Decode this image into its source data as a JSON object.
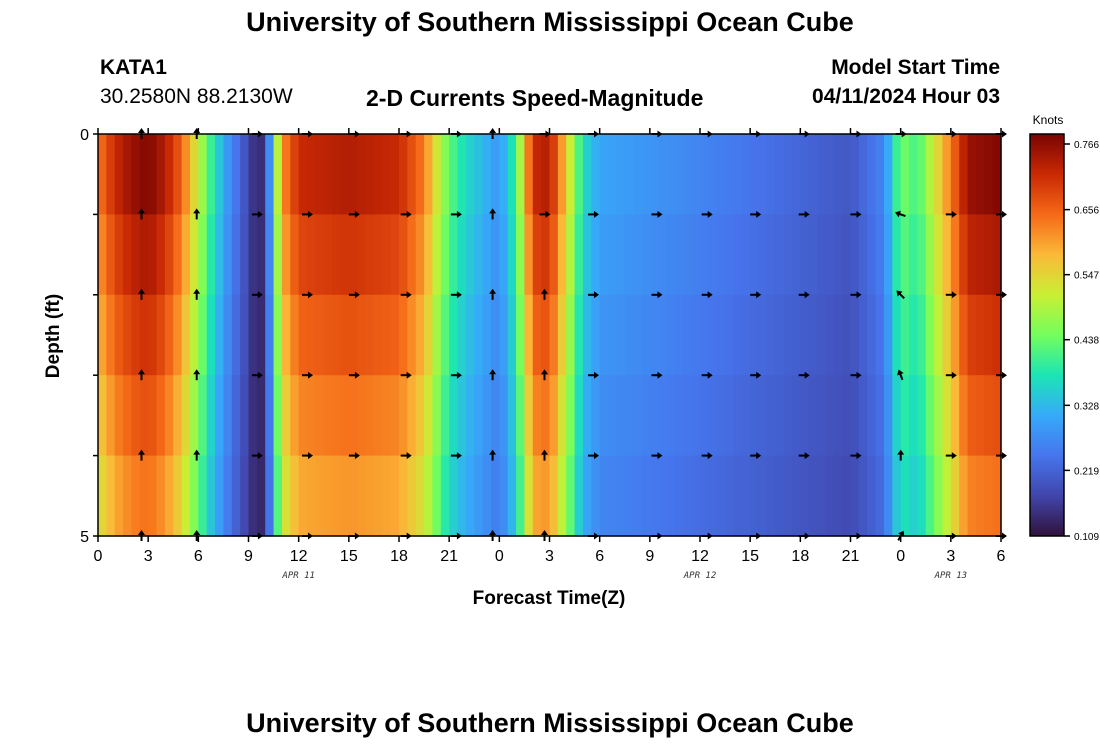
{
  "page": {
    "title": "University of Southern Mississippi Ocean Cube",
    "station": "KATA1",
    "coords": "30.2580N  88.2130W",
    "subtitle": "2-D Currents Speed-Magnitude",
    "model_label": "Model Start Time",
    "model_time": "04/11/2024 Hour 03",
    "bottom_title": "University of Southern Mississippi Ocean Cube"
  },
  "chart_data": {
    "type": "heatmap",
    "title": "2-D Currents Speed-Magnitude",
    "xlabel": "Forecast Time(Z)",
    "ylabel": "Depth (ft)",
    "x_ticks": [
      "0",
      "3",
      "6",
      "9",
      "12",
      "15",
      "18",
      "21",
      "0",
      "3",
      "6",
      "9",
      "12",
      "15",
      "18",
      "21",
      "0",
      "3",
      "6"
    ],
    "x_range_hours": [
      0,
      54
    ],
    "y_ticks": [
      "0",
      "5"
    ],
    "y_range_ft": [
      0,
      5
    ],
    "date_labels": [
      {
        "label": "APR 11",
        "hour": 12
      },
      {
        "label": "APR 12",
        "hour": 36
      },
      {
        "label": "APR 13",
        "hour": 51
      }
    ],
    "colorbar": {
      "unit": "Knots",
      "ticks": [
        "0.766",
        "0.656",
        "0.547",
        "0.438",
        "0.328",
        "0.219",
        "0.109"
      ],
      "range": [
        0.109,
        0.766
      ]
    },
    "depth_layers": 5,
    "speed_profile_hours": [
      0,
      1,
      2,
      3,
      4,
      5,
      6,
      7,
      8,
      9,
      9.5,
      10,
      11,
      12,
      15,
      18,
      19.5,
      20.5,
      21,
      22,
      24,
      25,
      26,
      27,
      28,
      29,
      30,
      33,
      36,
      39,
      42,
      45,
      47,
      48,
      49,
      51,
      52,
      54
    ],
    "speed_profile_knots": [
      0.62,
      0.7,
      0.74,
      0.76,
      0.72,
      0.64,
      0.5,
      0.36,
      0.26,
      0.18,
      0.13,
      0.16,
      0.6,
      0.7,
      0.72,
      0.7,
      0.62,
      0.48,
      0.42,
      0.36,
      0.28,
      0.4,
      0.7,
      0.72,
      0.55,
      0.36,
      0.3,
      0.28,
      0.26,
      0.24,
      0.22,
      0.2,
      0.26,
      0.44,
      0.4,
      0.62,
      0.74,
      0.76
    ],
    "arrow_rows_ft": [
      0,
      1,
      2,
      3,
      4,
      5
    ],
    "arrow_hours": [
      2.6,
      5.9,
      9.5,
      12.5,
      15.3,
      18.4,
      21.4,
      23.6,
      26.7,
      29.6,
      33.4,
      36.4,
      39.3,
      42.2,
      45.3,
      48.0,
      51.0,
      54.0
    ],
    "arrow_directions_deg": [
      [
        270,
        270,
        0,
        0,
        0,
        0,
        0,
        270,
        0,
        0,
        0,
        0,
        0,
        0,
        0,
        0,
        0,
        0
      ],
      [
        270,
        270,
        0,
        0,
        0,
        0,
        0,
        270,
        0,
        0,
        0,
        0,
        0,
        0,
        0,
        200,
        0,
        0
      ],
      [
        270,
        270,
        0,
        0,
        0,
        0,
        0,
        270,
        270,
        0,
        0,
        0,
        0,
        0,
        0,
        225,
        0,
        0
      ],
      [
        270,
        270,
        0,
        0,
        0,
        0,
        0,
        270,
        270,
        0,
        0,
        0,
        0,
        0,
        0,
        250,
        0,
        0
      ],
      [
        270,
        270,
        0,
        0,
        0,
        0,
        0,
        270,
        270,
        0,
        0,
        0,
        0,
        0,
        0,
        270,
        0,
        0
      ],
      [
        270,
        270,
        0,
        0,
        0,
        0,
        0,
        270,
        270,
        0,
        0,
        0,
        0,
        0,
        0,
        300,
        0,
        0
      ]
    ]
  }
}
